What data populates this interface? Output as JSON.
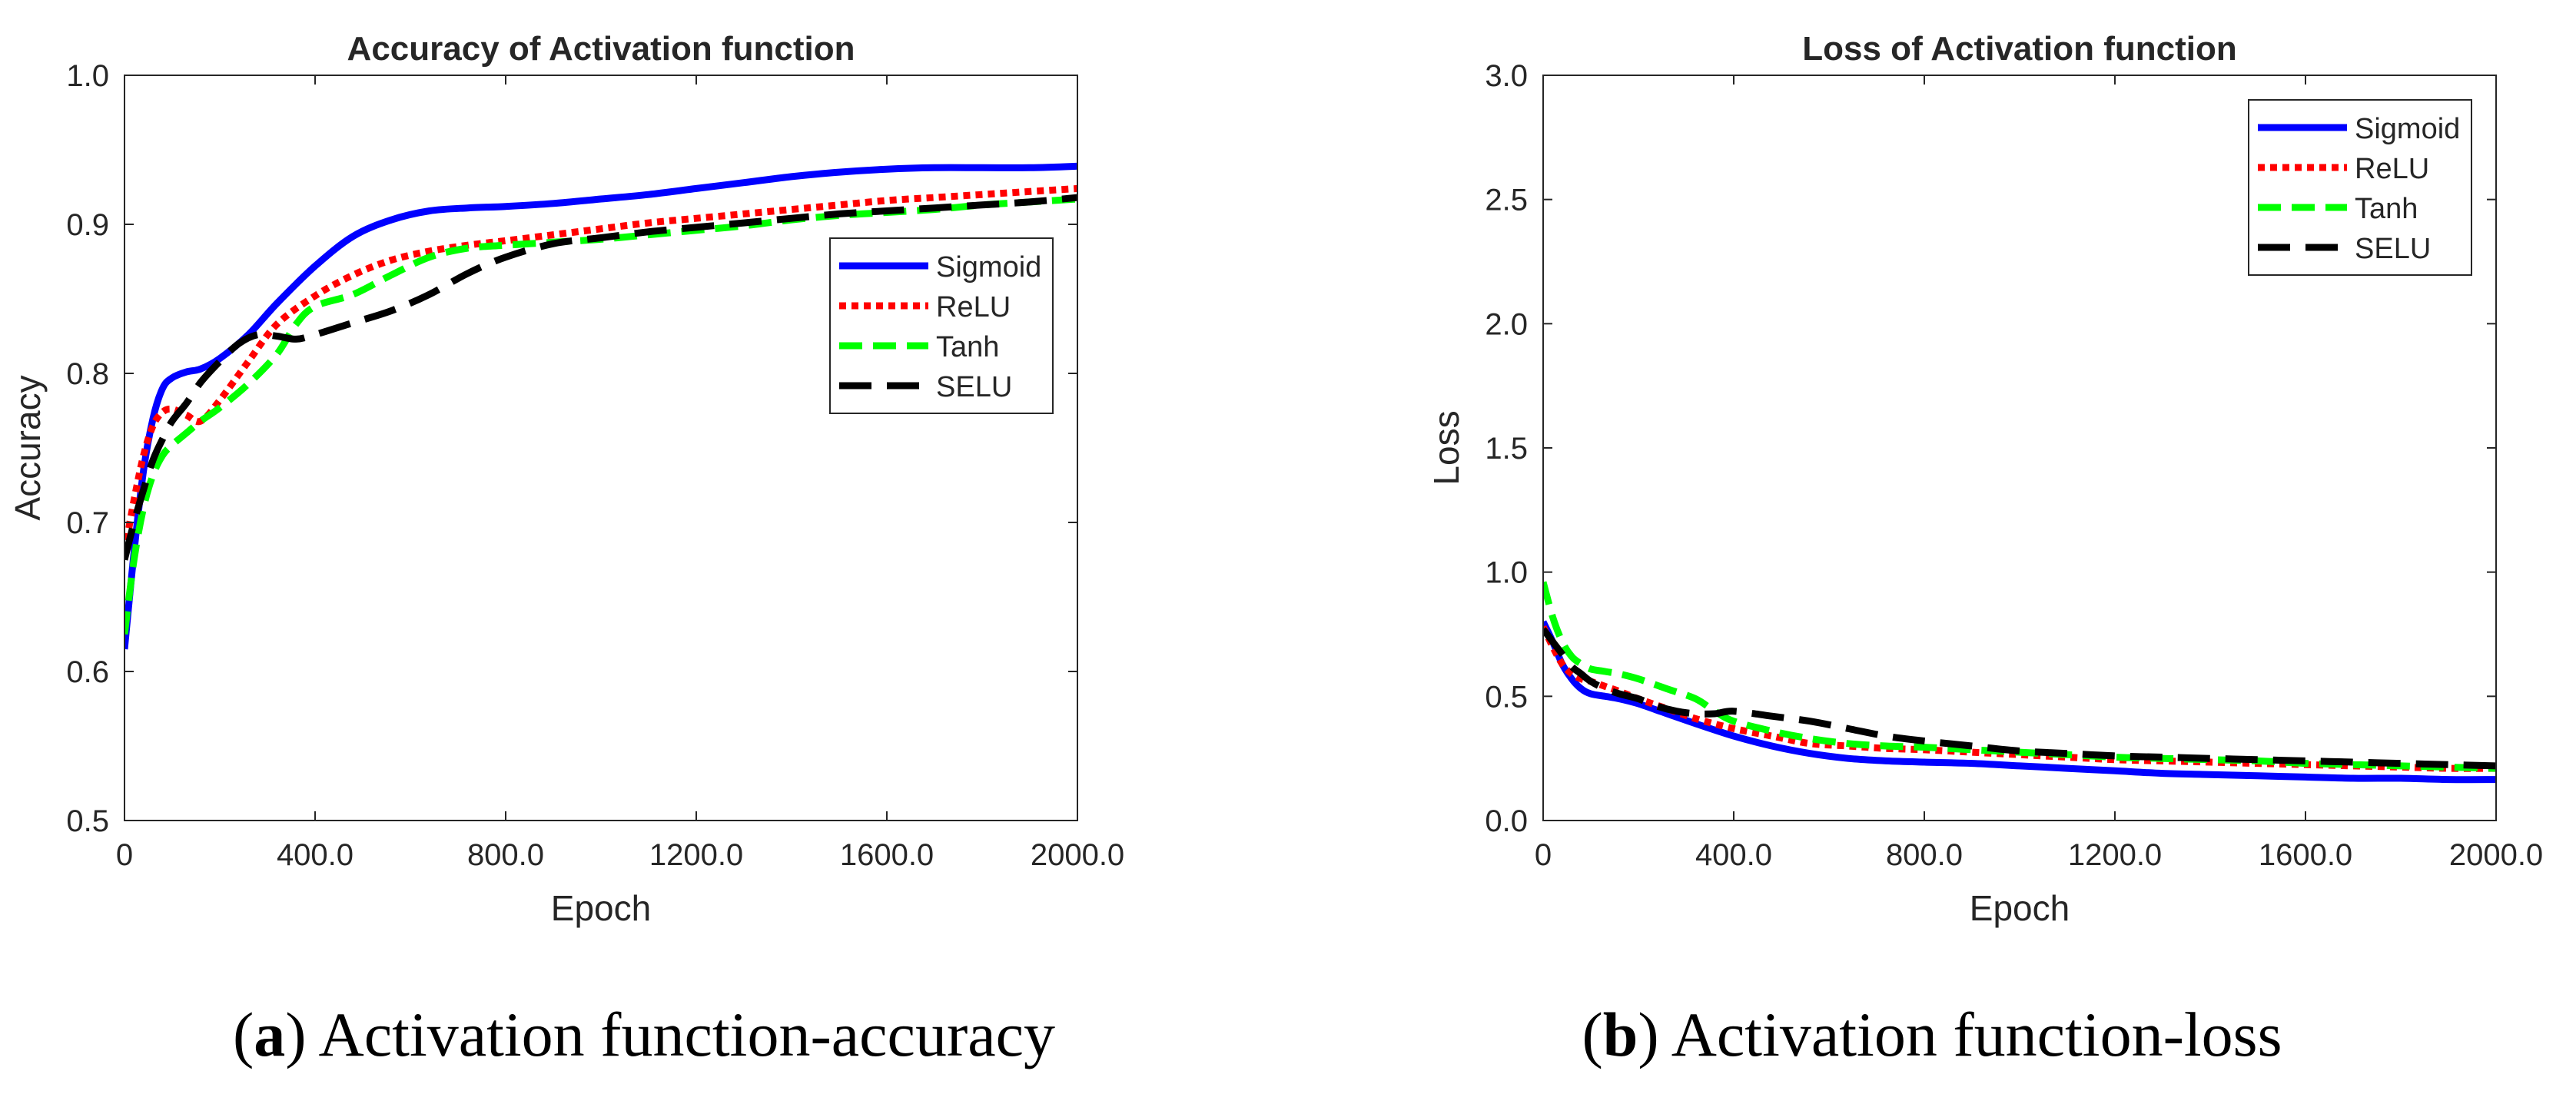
{
  "figure": {
    "caption_a": {
      "letter": "a",
      "text": "Activation function-accuracy"
    },
    "caption_b": {
      "letter": "b",
      "text": "Activation function-loss"
    }
  },
  "chart_data": [
    {
      "type": "line",
      "title": "Accuracy of Activation function",
      "xlabel": "Epoch",
      "ylabel": "Accuracy",
      "xlim": [
        0,
        2000
      ],
      "ylim": [
        0.5,
        1.0
      ],
      "xticks": [
        0,
        400,
        800,
        1200,
        1600,
        2000
      ],
      "xtick_labels": [
        "0",
        "400.0",
        "800.0",
        "1200.0",
        "1600.0",
        "2000.0"
      ],
      "yticks": [
        0.5,
        0.6,
        0.7,
        0.8,
        0.9,
        1.0
      ],
      "ytick_labels": [
        "0.5",
        "0.6",
        "0.7",
        "0.8",
        "0.9",
        "1.0"
      ],
      "legend_position": "center-right",
      "grid": false,
      "series": [
        {
          "name": "Sigmoid",
          "color": "#0000ff",
          "dash": "solid",
          "x": [
            0,
            20,
            40,
            60,
            80,
            100,
            130,
            160,
            200,
            260,
            320,
            400,
            480,
            560,
            640,
            720,
            800,
            900,
            1000,
            1100,
            1200,
            1300,
            1400,
            1500,
            1600,
            1700,
            1800,
            1900,
            2000
          ],
          "y": [
            0.615,
            0.68,
            0.735,
            0.77,
            0.79,
            0.797,
            0.801,
            0.803,
            0.81,
            0.826,
            0.847,
            0.872,
            0.892,
            0.903,
            0.909,
            0.911,
            0.912,
            0.914,
            0.917,
            0.92,
            0.924,
            0.928,
            0.932,
            0.935,
            0.937,
            0.938,
            0.938,
            0.938,
            0.939
          ]
        },
        {
          "name": "ReLU",
          "color": "#ff0000",
          "dash": "dotted",
          "x": [
            0,
            20,
            40,
            60,
            80,
            100,
            130,
            160,
            200,
            260,
            320,
            400,
            480,
            560,
            640,
            720,
            800,
            900,
            1000,
            1100,
            1200,
            1300,
            1400,
            1500,
            1600,
            1700,
            1800,
            1900,
            2000
          ],
          "y": [
            0.68,
            0.715,
            0.745,
            0.765,
            0.774,
            0.776,
            0.772,
            0.768,
            0.782,
            0.808,
            0.833,
            0.852,
            0.866,
            0.876,
            0.882,
            0.886,
            0.889,
            0.893,
            0.897,
            0.901,
            0.904,
            0.907,
            0.91,
            0.913,
            0.916,
            0.918,
            0.92,
            0.922,
            0.924
          ]
        },
        {
          "name": "Tanh",
          "color": "#00ff00",
          "dash": "dashed",
          "x": [
            0,
            20,
            40,
            60,
            80,
            100,
            130,
            160,
            200,
            260,
            320,
            360,
            400,
            480,
            560,
            640,
            720,
            800,
            900,
            1000,
            1100,
            1200,
            1300,
            1400,
            1500,
            1600,
            1700,
            1800,
            1900,
            2000
          ],
          "y": [
            0.625,
            0.675,
            0.71,
            0.732,
            0.745,
            0.752,
            0.76,
            0.768,
            0.777,
            0.793,
            0.813,
            0.833,
            0.845,
            0.853,
            0.866,
            0.878,
            0.884,
            0.886,
            0.888,
            0.89,
            0.893,
            0.896,
            0.899,
            0.903,
            0.906,
            0.908,
            0.91,
            0.913,
            0.915,
            0.917
          ]
        },
        {
          "name": "SELU",
          "color": "#000000",
          "dash": "longdash",
          "x": [
            0,
            20,
            40,
            60,
            80,
            100,
            130,
            160,
            200,
            240,
            280,
            320,
            360,
            400,
            480,
            560,
            640,
            720,
            800,
            900,
            1000,
            1100,
            1200,
            1300,
            1400,
            1500,
            1600,
            1700,
            1800,
            1900,
            2000
          ],
          "y": [
            0.675,
            0.7,
            0.722,
            0.742,
            0.756,
            0.768,
            0.78,
            0.794,
            0.808,
            0.82,
            0.826,
            0.825,
            0.823,
            0.826,
            0.834,
            0.842,
            0.853,
            0.867,
            0.878,
            0.887,
            0.891,
            0.895,
            0.898,
            0.901,
            0.904,
            0.907,
            0.909,
            0.911,
            0.913,
            0.915,
            0.918
          ]
        }
      ]
    },
    {
      "type": "line",
      "title": "Loss of Activation function",
      "xlabel": "Epoch",
      "ylabel": "Loss",
      "xlim": [
        0,
        2000
      ],
      "ylim": [
        0,
        3.0
      ],
      "xticks": [
        0,
        400,
        800,
        1200,
        1600,
        2000
      ],
      "xtick_labels": [
        "0",
        "400.0",
        "800.0",
        "1200.0",
        "1600.0",
        "2000.0"
      ],
      "yticks": [
        0,
        0.5,
        1.0,
        1.5,
        2.0,
        2.5,
        3.0
      ],
      "ytick_labels": [
        "0.0",
        "0.5",
        "1.0",
        "1.5",
        "2.0",
        "2.5",
        "3.0"
      ],
      "legend_position": "top-right",
      "grid": false,
      "series": [
        {
          "name": "Sigmoid",
          "color": "#0000ff",
          "dash": "solid",
          "x": [
            0,
            20,
            40,
            60,
            80,
            100,
            130,
            160,
            200,
            260,
            320,
            400,
            480,
            560,
            640,
            720,
            800,
            900,
            1000,
            1100,
            1200,
            1300,
            1400,
            1500,
            1600,
            1700,
            1800,
            1900,
            2000
          ],
          "y": [
            0.8,
            0.72,
            0.63,
            0.57,
            0.53,
            0.51,
            0.5,
            0.49,
            0.47,
            0.43,
            0.39,
            0.34,
            0.3,
            0.27,
            0.25,
            0.24,
            0.235,
            0.23,
            0.22,
            0.21,
            0.2,
            0.19,
            0.185,
            0.18,
            0.175,
            0.17,
            0.17,
            0.165,
            0.165
          ]
        },
        {
          "name": "ReLU",
          "color": "#ff0000",
          "dash": "dotted",
          "x": [
            0,
            20,
            40,
            60,
            80,
            100,
            130,
            160,
            200,
            260,
            320,
            400,
            480,
            560,
            640,
            720,
            800,
            900,
            1000,
            1100,
            1200,
            1300,
            1400,
            1500,
            1600,
            1700,
            1800,
            1900,
            2000
          ],
          "y": [
            0.78,
            0.7,
            0.63,
            0.59,
            0.57,
            0.56,
            0.54,
            0.52,
            0.49,
            0.45,
            0.41,
            0.37,
            0.34,
            0.31,
            0.3,
            0.29,
            0.285,
            0.275,
            0.265,
            0.255,
            0.245,
            0.24,
            0.235,
            0.23,
            0.225,
            0.22,
            0.215,
            0.21,
            0.21
          ]
        },
        {
          "name": "Tanh",
          "color": "#00ff00",
          "dash": "dashed",
          "x": [
            0,
            20,
            40,
            60,
            80,
            100,
            130,
            160,
            200,
            260,
            320,
            360,
            400,
            480,
            560,
            640,
            720,
            800,
            900,
            1000,
            1100,
            1200,
            1300,
            1400,
            1500,
            1600,
            1700,
            1800,
            1900,
            2000
          ],
          "y": [
            0.96,
            0.82,
            0.72,
            0.66,
            0.63,
            0.61,
            0.6,
            0.59,
            0.57,
            0.53,
            0.49,
            0.44,
            0.4,
            0.36,
            0.33,
            0.31,
            0.3,
            0.295,
            0.285,
            0.275,
            0.265,
            0.255,
            0.25,
            0.245,
            0.24,
            0.23,
            0.225,
            0.22,
            0.215,
            0.21
          ]
        },
        {
          "name": "SELU",
          "color": "#000000",
          "dash": "longdash",
          "x": [
            0,
            20,
            40,
            60,
            80,
            100,
            130,
            160,
            200,
            240,
            280,
            320,
            360,
            400,
            480,
            560,
            640,
            720,
            800,
            900,
            1000,
            1100,
            1200,
            1300,
            1400,
            1500,
            1600,
            1700,
            1800,
            1900,
            2000
          ],
          "y": [
            0.77,
            0.72,
            0.67,
            0.62,
            0.59,
            0.56,
            0.53,
            0.51,
            0.49,
            0.46,
            0.44,
            0.43,
            0.43,
            0.44,
            0.42,
            0.4,
            0.37,
            0.34,
            0.32,
            0.3,
            0.28,
            0.27,
            0.26,
            0.255,
            0.25,
            0.245,
            0.24,
            0.235,
            0.23,
            0.225,
            0.22
          ]
        }
      ]
    }
  ]
}
